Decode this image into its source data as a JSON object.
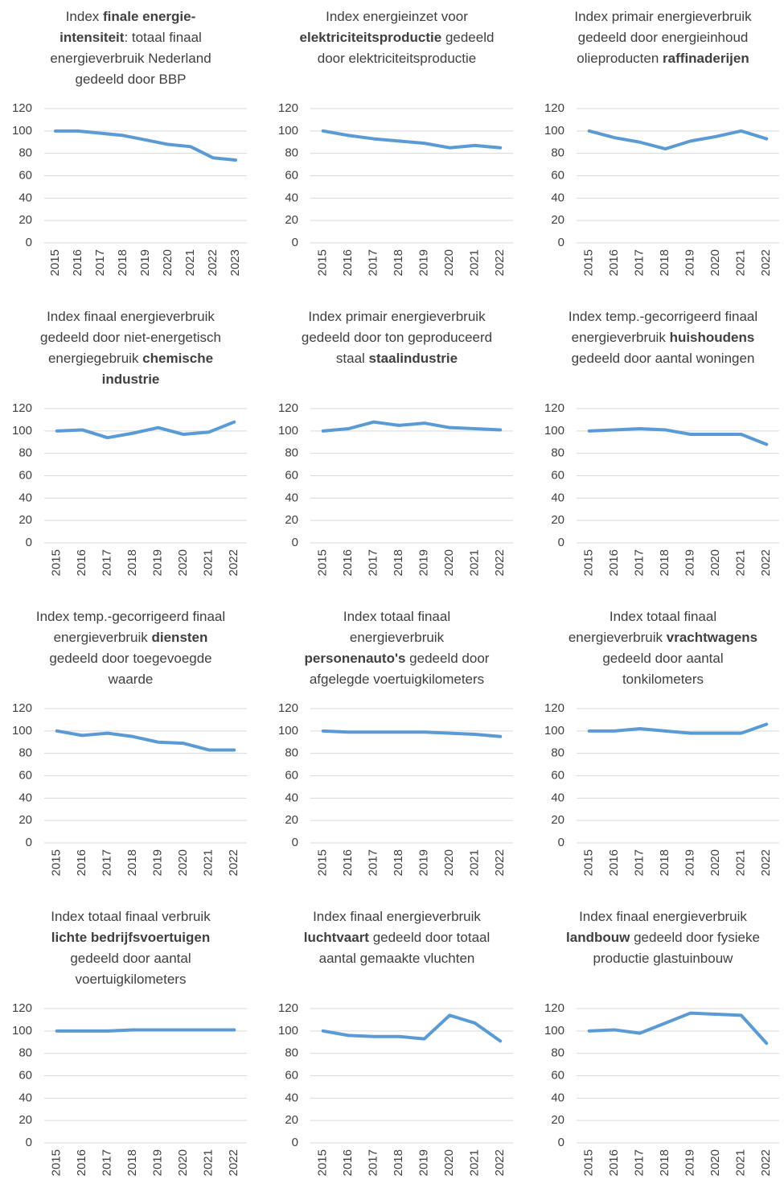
{
  "chart_data": [
    {
      "type": "line",
      "title": [
        {
          "text": "Index ",
          "bold": false
        },
        {
          "text": "finale energie-intensiteit",
          "bold": true
        },
        {
          "text": ": totaal finaal energieverbruik Nederland gedeeld door BBP",
          "bold": false
        }
      ],
      "categories": [
        "2015",
        "2016",
        "2017",
        "2018",
        "2019",
        "2020",
        "2021",
        "2022",
        "2023"
      ],
      "values": [
        100,
        100,
        98,
        96,
        92,
        88,
        86,
        76,
        74
      ],
      "color": "#5b9bd5",
      "ylim": [
        0,
        120
      ],
      "yticks": [
        0,
        20,
        40,
        60,
        80,
        100,
        120
      ],
      "grid": true
    },
    {
      "type": "line",
      "title": [
        {
          "text": "Index energieinzet voor ",
          "bold": false
        },
        {
          "text": "elektriciteitsproductie",
          "bold": true
        },
        {
          "text": " gedeeld door elektriciteitsproductie",
          "bold": false
        }
      ],
      "categories": [
        "2015",
        "2016",
        "2017",
        "2018",
        "2019",
        "2020",
        "2021",
        "2022"
      ],
      "values": [
        100,
        96,
        93,
        91,
        89,
        85,
        87,
        85
      ],
      "color": "#5b9bd5",
      "ylim": [
        0,
        120
      ],
      "yticks": [
        0,
        20,
        40,
        60,
        80,
        100,
        120
      ],
      "grid": true
    },
    {
      "type": "line",
      "title": [
        {
          "text": "Index primair energieverbruik gedeeld door energieinhoud olieproducten ",
          "bold": false
        },
        {
          "text": "raffinaderijen",
          "bold": true
        }
      ],
      "categories": [
        "2015",
        "2016",
        "2017",
        "2018",
        "2019",
        "2020",
        "2021",
        "2022"
      ],
      "values": [
        100,
        94,
        90,
        84,
        91,
        95,
        100,
        93
      ],
      "color": "#5b9bd5",
      "ylim": [
        0,
        120
      ],
      "yticks": [
        0,
        20,
        40,
        60,
        80,
        100,
        120
      ],
      "grid": true
    },
    {
      "type": "line",
      "title": [
        {
          "text": "Index finaal energieverbruik gedeeld door niet-energetisch energiegebruik ",
          "bold": false
        },
        {
          "text": "chemische industrie",
          "bold": true
        }
      ],
      "categories": [
        "2015",
        "2016",
        "2017",
        "2018",
        "2019",
        "2020",
        "2021",
        "2022"
      ],
      "values": [
        100,
        101,
        94,
        98,
        103,
        97,
        99,
        108
      ],
      "color": "#5b9bd5",
      "ylim": [
        0,
        120
      ],
      "yticks": [
        0,
        20,
        40,
        60,
        80,
        100,
        120
      ],
      "grid": true
    },
    {
      "type": "line",
      "title": [
        {
          "text": "Index primair energieverbruik gedeeld door ton geproduceerd staal ",
          "bold": false
        },
        {
          "text": "staalindustrie",
          "bold": true
        }
      ],
      "categories": [
        "2015",
        "2016",
        "2017",
        "2018",
        "2019",
        "2020",
        "2021",
        "2022"
      ],
      "values": [
        100,
        102,
        108,
        105,
        107,
        103,
        102,
        101
      ],
      "color": "#5b9bd5",
      "ylim": [
        0,
        120
      ],
      "yticks": [
        0,
        20,
        40,
        60,
        80,
        100,
        120
      ],
      "grid": true
    },
    {
      "type": "line",
      "title": [
        {
          "text": "Index temp.-gecorrigeerd finaal energieverbruik ",
          "bold": false
        },
        {
          "text": "huishoudens",
          "bold": true
        },
        {
          "text": " gedeeld door aantal woningen",
          "bold": false
        }
      ],
      "categories": [
        "2015",
        "2016",
        "2017",
        "2018",
        "2019",
        "2020",
        "2021",
        "2022"
      ],
      "values": [
        100,
        101,
        102,
        101,
        97,
        97,
        97,
        88
      ],
      "color": "#5b9bd5",
      "ylim": [
        0,
        120
      ],
      "yticks": [
        0,
        20,
        40,
        60,
        80,
        100,
        120
      ],
      "grid": true
    },
    {
      "type": "line",
      "title": [
        {
          "text": "Index temp.-gecorrigeerd finaal energieverbruik ",
          "bold": false
        },
        {
          "text": "diensten",
          "bold": true
        },
        {
          "text": " gedeeld door toegevoegde waarde",
          "bold": false
        }
      ],
      "categories": [
        "2015",
        "2016",
        "2017",
        "2018",
        "2019",
        "2020",
        "2021",
        "2022"
      ],
      "values": [
        100,
        96,
        98,
        95,
        90,
        89,
        83,
        83
      ],
      "color": "#5b9bd5",
      "ylim": [
        0,
        120
      ],
      "yticks": [
        0,
        20,
        40,
        60,
        80,
        100,
        120
      ],
      "grid": true
    },
    {
      "type": "line",
      "title": [
        {
          "text": "Index totaal finaal energieverbruik ",
          "bold": false
        },
        {
          "text": "personenauto's",
          "bold": true
        },
        {
          "text": " gedeeld door afgelegde voertuigkilometers",
          "bold": false
        }
      ],
      "categories": [
        "2015",
        "2016",
        "2017",
        "2018",
        "2019",
        "2020",
        "2021",
        "2022"
      ],
      "values": [
        100,
        99,
        99,
        99,
        99,
        98,
        97,
        95
      ],
      "color": "#5b9bd5",
      "ylim": [
        0,
        120
      ],
      "yticks": [
        0,
        20,
        40,
        60,
        80,
        100,
        120
      ],
      "grid": true
    },
    {
      "type": "line",
      "title": [
        {
          "text": "Index totaal finaal energieverbruik ",
          "bold": false
        },
        {
          "text": "vrachtwagens",
          "bold": true
        },
        {
          "text": " gedeeld door aantal tonkilometers",
          "bold": false
        }
      ],
      "categories": [
        "2015",
        "2016",
        "2017",
        "2018",
        "2019",
        "2020",
        "2021",
        "2022"
      ],
      "values": [
        100,
        100,
        102,
        100,
        98,
        98,
        98,
        106
      ],
      "color": "#5b9bd5",
      "ylim": [
        0,
        120
      ],
      "yticks": [
        0,
        20,
        40,
        60,
        80,
        100,
        120
      ],
      "grid": true
    },
    {
      "type": "line",
      "title": [
        {
          "text": "Index totaal finaal verbruik ",
          "bold": false
        },
        {
          "text": "lichte bedrijfsvoertuigen",
          "bold": true
        },
        {
          "text": " gedeeld door aantal voertuigkilometers",
          "bold": false
        }
      ],
      "categories": [
        "2015",
        "2016",
        "2017",
        "2018",
        "2019",
        "2020",
        "2021",
        "2022"
      ],
      "values": [
        100,
        100,
        100,
        101,
        101,
        101,
        101,
        101
      ],
      "color": "#5b9bd5",
      "ylim": [
        0,
        120
      ],
      "yticks": [
        0,
        20,
        40,
        60,
        80,
        100,
        120
      ],
      "grid": true
    },
    {
      "type": "line",
      "title": [
        {
          "text": "Index finaal energieverbruik ",
          "bold": false
        },
        {
          "text": "luchtvaart",
          "bold": true
        },
        {
          "text": " gedeeld door totaal aantal gemaakte vluchten",
          "bold": false
        }
      ],
      "categories": [
        "2015",
        "2016",
        "2017",
        "2018",
        "2019",
        "2020",
        "2021",
        "2022"
      ],
      "values": [
        100,
        96,
        95,
        95,
        93,
        114,
        107,
        91
      ],
      "color": "#5b9bd5",
      "ylim": [
        0,
        120
      ],
      "yticks": [
        0,
        20,
        40,
        60,
        80,
        100,
        120
      ],
      "grid": true
    },
    {
      "type": "line",
      "title": [
        {
          "text": "Index finaal energieverbruik ",
          "bold": false
        },
        {
          "text": "landbouw",
          "bold": true
        },
        {
          "text": " gedeeld door fysieke productie glastuinbouw",
          "bold": false
        }
      ],
      "categories": [
        "2015",
        "2016",
        "2017",
        "2018",
        "2019",
        "2020",
        "2021",
        "2022"
      ],
      "values": [
        100,
        101,
        98,
        107,
        116,
        115,
        114,
        89
      ],
      "color": "#5b9bd5",
      "ylim": [
        0,
        120
      ],
      "yticks": [
        0,
        20,
        40,
        60,
        80,
        100,
        120
      ],
      "grid": true
    }
  ]
}
